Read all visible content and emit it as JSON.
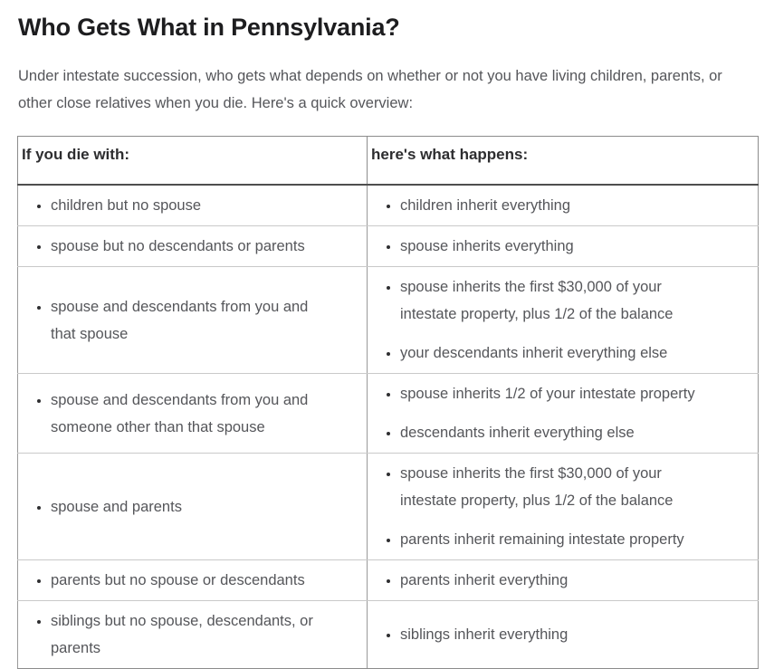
{
  "page": {
    "title": "Who Gets What in Pennsylvania?",
    "intro": "Under intestate succession, who gets what depends on whether or not you have living children, parents, or other close relatives when you die. Here's a quick overview:"
  },
  "table": {
    "headers": {
      "left": "If you die with:",
      "right": "here's what happens:"
    },
    "rows": [
      {
        "left": [
          [
            "children but no spouse"
          ]
        ],
        "right": [
          [
            "children inherit everything"
          ]
        ]
      },
      {
        "left": [
          [
            "spouse but no descendants or parents"
          ]
        ],
        "right": [
          [
            "spouse inherits everything"
          ]
        ]
      },
      {
        "left": [
          [
            "spouse and descendants from you and",
            "that spouse"
          ]
        ],
        "right": [
          [
            "spouse inherits the first $30,000 of your",
            "intestate property, plus 1/2 of the balance"
          ],
          [
            "your descendants inherit everything else"
          ]
        ]
      },
      {
        "left": [
          [
            "spouse and descendants from you and",
            "someone other than that spouse"
          ]
        ],
        "right": [
          [
            "spouse inherits 1/2 of your intestate property"
          ],
          [
            "descendants inherit everything else"
          ]
        ]
      },
      {
        "left": [
          [
            "spouse and parents"
          ]
        ],
        "right": [
          [
            "spouse inherits the first $30,000 of your",
            "intestate property, plus 1/2 of the balance"
          ],
          [
            "parents inherit remaining intestate property"
          ]
        ]
      },
      {
        "left": [
          [
            "parents but no spouse or descendants"
          ]
        ],
        "right": [
          [
            "parents inherit everything"
          ]
        ]
      },
      {
        "left": [
          [
            "siblings but no spouse, descendants, or",
            "parents"
          ]
        ],
        "right": [
          [
            "siblings inherit everything"
          ]
        ]
      }
    ]
  },
  "colors": {
    "heading_text": "#1d1d1f",
    "body_text": "#55565a",
    "table_outer_border": "#8c8c8c",
    "row_divider": "#c9c9c9",
    "column_divider": "#9a9a9a",
    "header_underline": "#4e4e4e"
  }
}
